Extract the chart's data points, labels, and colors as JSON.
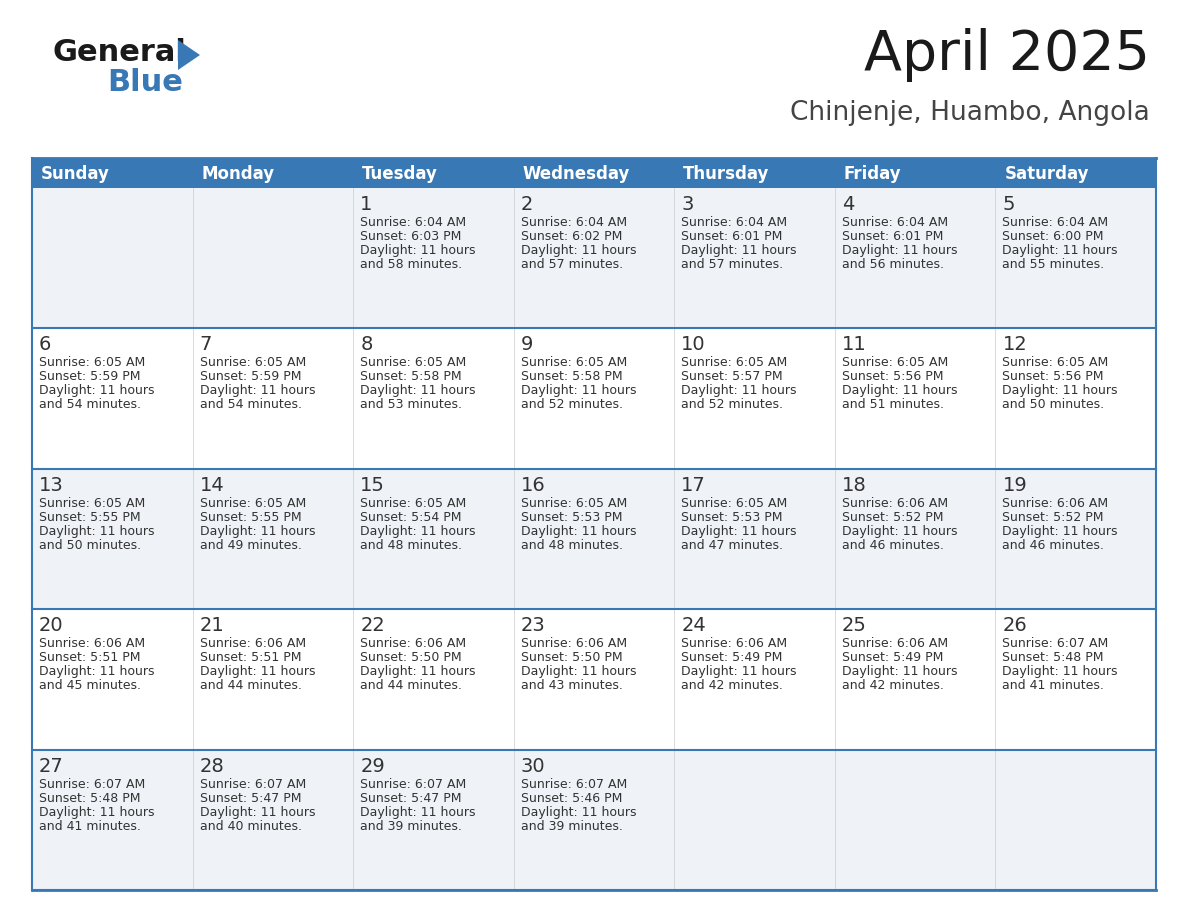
{
  "title": "April 2025",
  "subtitle": "Chinjenje, Huambo, Angola",
  "header_color": "#3878b4",
  "header_text_color": "#ffffff",
  "row_bg_odd": "#eff3f8",
  "row_bg_even": "#ffffff",
  "border_color": "#3878b4",
  "divider_color": "#3878b4",
  "text_color": "#333333",
  "days_of_week": [
    "Sunday",
    "Monday",
    "Tuesday",
    "Wednesday",
    "Thursday",
    "Friday",
    "Saturday"
  ],
  "calendar_data": [
    [
      {
        "day": null,
        "sunrise": null,
        "sunset": null,
        "daylight": null
      },
      {
        "day": null,
        "sunrise": null,
        "sunset": null,
        "daylight": null
      },
      {
        "day": 1,
        "sunrise": "6:04 AM",
        "sunset": "6:03 PM",
        "daylight": "11 hours and 58 minutes."
      },
      {
        "day": 2,
        "sunrise": "6:04 AM",
        "sunset": "6:02 PM",
        "daylight": "11 hours and 57 minutes."
      },
      {
        "day": 3,
        "sunrise": "6:04 AM",
        "sunset": "6:01 PM",
        "daylight": "11 hours and 57 minutes."
      },
      {
        "day": 4,
        "sunrise": "6:04 AM",
        "sunset": "6:01 PM",
        "daylight": "11 hours and 56 minutes."
      },
      {
        "day": 5,
        "sunrise": "6:04 AM",
        "sunset": "6:00 PM",
        "daylight": "11 hours and 55 minutes."
      }
    ],
    [
      {
        "day": 6,
        "sunrise": "6:05 AM",
        "sunset": "5:59 PM",
        "daylight": "11 hours and 54 minutes."
      },
      {
        "day": 7,
        "sunrise": "6:05 AM",
        "sunset": "5:59 PM",
        "daylight": "11 hours and 54 minutes."
      },
      {
        "day": 8,
        "sunrise": "6:05 AM",
        "sunset": "5:58 PM",
        "daylight": "11 hours and 53 minutes."
      },
      {
        "day": 9,
        "sunrise": "6:05 AM",
        "sunset": "5:58 PM",
        "daylight": "11 hours and 52 minutes."
      },
      {
        "day": 10,
        "sunrise": "6:05 AM",
        "sunset": "5:57 PM",
        "daylight": "11 hours and 52 minutes."
      },
      {
        "day": 11,
        "sunrise": "6:05 AM",
        "sunset": "5:56 PM",
        "daylight": "11 hours and 51 minutes."
      },
      {
        "day": 12,
        "sunrise": "6:05 AM",
        "sunset": "5:56 PM",
        "daylight": "11 hours and 50 minutes."
      }
    ],
    [
      {
        "day": 13,
        "sunrise": "6:05 AM",
        "sunset": "5:55 PM",
        "daylight": "11 hours and 50 minutes."
      },
      {
        "day": 14,
        "sunrise": "6:05 AM",
        "sunset": "5:55 PM",
        "daylight": "11 hours and 49 minutes."
      },
      {
        "day": 15,
        "sunrise": "6:05 AM",
        "sunset": "5:54 PM",
        "daylight": "11 hours and 48 minutes."
      },
      {
        "day": 16,
        "sunrise": "6:05 AM",
        "sunset": "5:53 PM",
        "daylight": "11 hours and 48 minutes."
      },
      {
        "day": 17,
        "sunrise": "6:05 AM",
        "sunset": "5:53 PM",
        "daylight": "11 hours and 47 minutes."
      },
      {
        "day": 18,
        "sunrise": "6:06 AM",
        "sunset": "5:52 PM",
        "daylight": "11 hours and 46 minutes."
      },
      {
        "day": 19,
        "sunrise": "6:06 AM",
        "sunset": "5:52 PM",
        "daylight": "11 hours and 46 minutes."
      }
    ],
    [
      {
        "day": 20,
        "sunrise": "6:06 AM",
        "sunset": "5:51 PM",
        "daylight": "11 hours and 45 minutes."
      },
      {
        "day": 21,
        "sunrise": "6:06 AM",
        "sunset": "5:51 PM",
        "daylight": "11 hours and 44 minutes."
      },
      {
        "day": 22,
        "sunrise": "6:06 AM",
        "sunset": "5:50 PM",
        "daylight": "11 hours and 44 minutes."
      },
      {
        "day": 23,
        "sunrise": "6:06 AM",
        "sunset": "5:50 PM",
        "daylight": "11 hours and 43 minutes."
      },
      {
        "day": 24,
        "sunrise": "6:06 AM",
        "sunset": "5:49 PM",
        "daylight": "11 hours and 42 minutes."
      },
      {
        "day": 25,
        "sunrise": "6:06 AM",
        "sunset": "5:49 PM",
        "daylight": "11 hours and 42 minutes."
      },
      {
        "day": 26,
        "sunrise": "6:07 AM",
        "sunset": "5:48 PM",
        "daylight": "11 hours and 41 minutes."
      }
    ],
    [
      {
        "day": 27,
        "sunrise": "6:07 AM",
        "sunset": "5:48 PM",
        "daylight": "11 hours and 41 minutes."
      },
      {
        "day": 28,
        "sunrise": "6:07 AM",
        "sunset": "5:47 PM",
        "daylight": "11 hours and 40 minutes."
      },
      {
        "day": 29,
        "sunrise": "6:07 AM",
        "sunset": "5:47 PM",
        "daylight": "11 hours and 39 minutes."
      },
      {
        "day": 30,
        "sunrise": "6:07 AM",
        "sunset": "5:46 PM",
        "daylight": "11 hours and 39 minutes."
      },
      {
        "day": null,
        "sunrise": null,
        "sunset": null,
        "daylight": null
      },
      {
        "day": null,
        "sunrise": null,
        "sunset": null,
        "daylight": null
      },
      {
        "day": null,
        "sunrise": null,
        "sunset": null,
        "daylight": null
      }
    ]
  ],
  "fig_width": 11.88,
  "fig_height": 9.18,
  "dpi": 100
}
